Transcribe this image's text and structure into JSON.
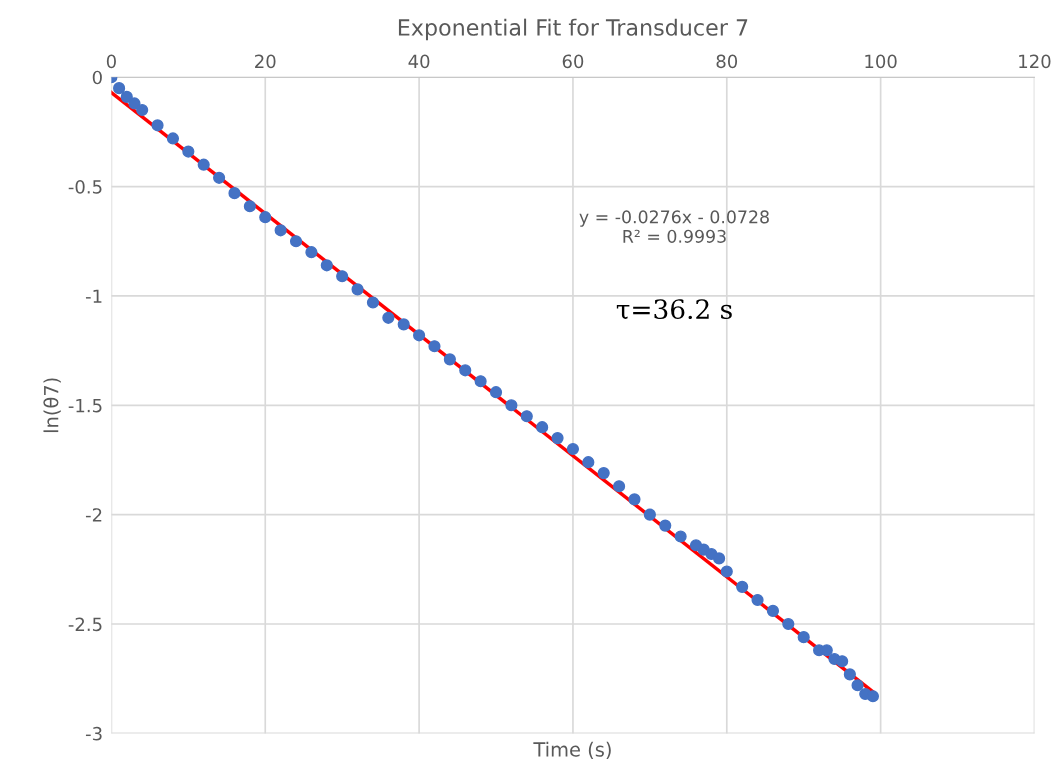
{
  "chart_data": {
    "type": "scatter",
    "title": "Exponential Fit for Transducer 7",
    "xlabel": "Time (s)",
    "ylabel": "ln(θ7)",
    "series": [
      {
        "color": "#4472c4",
        "marker": "circle",
        "x": [
          0,
          1,
          2,
          3,
          4,
          6,
          8,
          10,
          12,
          14,
          16,
          18,
          20,
          22,
          24,
          26,
          28,
          30,
          32,
          34,
          36,
          38,
          40,
          42,
          44,
          46,
          48,
          50,
          52,
          54,
          56,
          58,
          60,
          62,
          64,
          66,
          68,
          70,
          72,
          74,
          76,
          77,
          78,
          79,
          80,
          82,
          84,
          86,
          88,
          90,
          92,
          93,
          94,
          95,
          96,
          97,
          98,
          99
        ],
        "values": [
          0.0,
          -0.05,
          -0.09,
          -0.12,
          -0.15,
          -0.22,
          -0.28,
          -0.34,
          -0.4,
          -0.46,
          -0.53,
          -0.59,
          -0.64,
          -0.7,
          -0.75,
          -0.8,
          -0.86,
          -0.91,
          -0.97,
          -1.03,
          -1.1,
          -1.13,
          -1.18,
          -1.23,
          -1.29,
          -1.34,
          -1.39,
          -1.44,
          -1.5,
          -1.55,
          -1.6,
          -1.65,
          -1.7,
          -1.76,
          -1.81,
          -1.87,
          -1.93,
          -2.0,
          -2.05,
          -2.1,
          -2.14,
          -2.16,
          -2.18,
          -2.2,
          -2.26,
          -2.33,
          -2.39,
          -2.44,
          -2.5,
          -2.56,
          -2.62,
          -2.62,
          -2.66,
          -2.67,
          -2.73,
          -2.78,
          -2.82,
          -2.83
        ]
      },
      {
        "type": "line",
        "color": "#ff0000",
        "x": [
          0,
          99
        ],
        "values": [
          -0.07,
          -2.81
        ]
      }
    ],
    "annotations": [
      "y = -0.0276x - 0.0728\nR² = 0.9993",
      "τ=36.2 s"
    ],
    "xlim": [
      0,
      120
    ],
    "xticks": [
      0,
      20,
      40,
      60,
      80,
      100,
      120
    ],
    "ylim": [
      -3,
      0
    ],
    "yticks": [
      0,
      -0.5,
      -1,
      -1.5,
      -2,
      -2.5,
      -3
    ],
    "grid": true,
    "legend": false
  }
}
